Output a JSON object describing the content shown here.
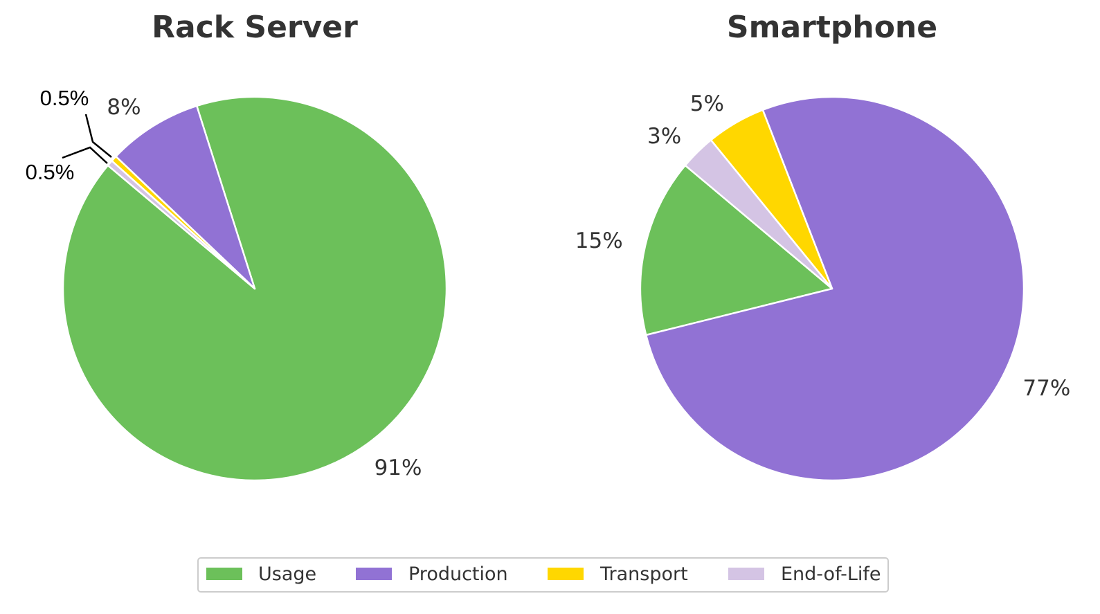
{
  "chart_data": [
    {
      "type": "pie",
      "title": "Rack Server",
      "categories": [
        "Usage",
        "Production",
        "Transport",
        "End-of-Life"
      ],
      "values": [
        91,
        8,
        0.5,
        0.5
      ],
      "labels": [
        "91%",
        "8%",
        "0.5%",
        "0.5%"
      ]
    },
    {
      "type": "pie",
      "title": "Smartphone",
      "categories": [
        "Usage",
        "Production",
        "Transport",
        "End-of-Life"
      ],
      "values": [
        15,
        77,
        5,
        3
      ],
      "labels": [
        "15%",
        "77%",
        "5%",
        "3%"
      ]
    }
  ],
  "legend": {
    "placement": "bottom-center",
    "items": [
      {
        "label": "Usage",
        "color": "#6cc05a"
      },
      {
        "label": "Production",
        "color": "#9172d4"
      },
      {
        "label": "Transport",
        "color": "#ffd700"
      },
      {
        "label": "End-of-Life",
        "color": "#d4c4e4"
      }
    ]
  }
}
